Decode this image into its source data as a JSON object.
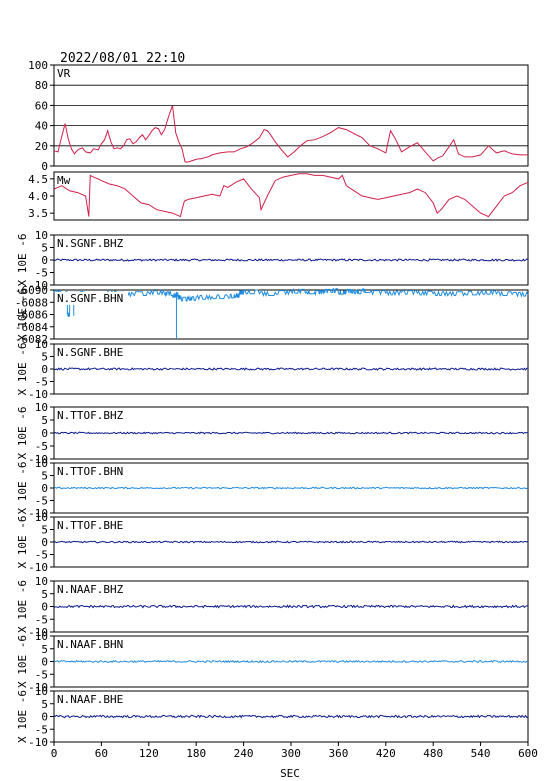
{
  "header": {
    "timestamp": "2022/08/01 22:10"
  },
  "x_axis": {
    "label": "SEC",
    "range": [
      0,
      600
    ],
    "ticks": [
      "0",
      "60",
      "120",
      "180",
      "240",
      "300",
      "360",
      "420",
      "480",
      "540",
      "600"
    ]
  },
  "colors": {
    "vr": "#d0204a",
    "mw": "#d0204a",
    "dark_trace": "#0a1a8c",
    "light_trace": "#1e8ce0",
    "axis": "#000000"
  },
  "chart_data": [
    {
      "type": "line",
      "panel_label": "VR",
      "ylim": [
        0,
        100
      ],
      "y_ticks": [
        "0",
        "20",
        "40",
        "60",
        "80",
        "100"
      ],
      "grid": true,
      "x": [
        0,
        5,
        10,
        14,
        18,
        22,
        26,
        30,
        36,
        40,
        46,
        50,
        56,
        60,
        64,
        68,
        72,
        76,
        80,
        84,
        88,
        92,
        96,
        100,
        104,
        108,
        112,
        116,
        120,
        124,
        128,
        132,
        136,
        140,
        145,
        150,
        154,
        158,
        162,
        166,
        170,
        174,
        178,
        182,
        186,
        190,
        195,
        200,
        205,
        210,
        220,
        228,
        236,
        244,
        252,
        260,
        266,
        270,
        274,
        280,
        288,
        296,
        304,
        312,
        320,
        330,
        340,
        350,
        360,
        370,
        380,
        390,
        400,
        410,
        420,
        426,
        432,
        440,
        450,
        460,
        470,
        480,
        486,
        492,
        500,
        506,
        512,
        520,
        530,
        540,
        550,
        560,
        570,
        580,
        590,
        600
      ],
      "values": [
        15,
        14,
        30,
        42,
        27,
        17,
        12,
        16,
        18,
        14,
        13,
        17,
        16,
        22,
        26,
        35,
        24,
        17,
        18,
        17,
        20,
        26,
        27,
        22,
        24,
        28,
        31,
        26,
        30,
        35,
        38,
        37,
        31,
        36,
        49,
        60,
        33,
        24,
        17,
        4,
        4,
        5,
        6,
        7,
        7,
        8,
        9,
        11,
        12,
        13,
        14,
        14,
        17,
        19,
        23,
        28,
        36,
        35,
        31,
        24,
        16,
        9,
        14,
        20,
        25,
        26,
        29,
        33,
        38,
        36,
        32,
        28,
        20,
        17,
        13,
        35,
        27,
        14,
        19,
        23,
        14,
        5,
        8,
        10,
        19,
        26,
        12,
        9,
        9,
        11,
        20,
        13,
        15,
        12,
        11,
        11
      ]
    },
    {
      "type": "line",
      "panel_label": "Mw",
      "ylim": [
        3.3,
        4.7
      ],
      "y_ticks": [
        "3.5",
        "4.0",
        "4.5"
      ],
      "grid": false,
      "x": [
        0,
        10,
        20,
        30,
        40,
        44,
        46,
        50,
        56,
        60,
        70,
        80,
        90,
        100,
        110,
        120,
        130,
        140,
        150,
        160,
        162,
        165,
        170,
        180,
        190,
        200,
        210,
        215,
        220,
        230,
        240,
        250,
        260,
        262,
        270,
        280,
        290,
        300,
        310,
        320,
        330,
        340,
        350,
        360,
        365,
        370,
        380,
        390,
        400,
        410,
        420,
        430,
        440,
        450,
        460,
        470,
        480,
        485,
        490,
        500,
        510,
        520,
        530,
        540,
        550,
        560,
        570,
        580,
        590,
        600
      ],
      "values": [
        4.2,
        4.3,
        4.15,
        4.1,
        4.0,
        3.4,
        4.6,
        4.55,
        4.5,
        4.45,
        4.35,
        4.3,
        4.2,
        4.0,
        3.8,
        3.75,
        3.6,
        3.55,
        3.5,
        3.4,
        3.6,
        3.85,
        3.9,
        3.95,
        4.0,
        4.05,
        4.0,
        4.3,
        4.25,
        4.4,
        4.5,
        4.2,
        3.95,
        3.6,
        4.0,
        4.45,
        4.55,
        4.6,
        4.65,
        4.65,
        4.6,
        4.6,
        4.55,
        4.5,
        4.6,
        4.3,
        4.15,
        4.0,
        3.95,
        3.9,
        3.95,
        4.0,
        4.05,
        4.1,
        4.2,
        4.1,
        3.8,
        3.5,
        3.6,
        3.9,
        4.0,
        3.9,
        3.7,
        3.5,
        3.4,
        3.7,
        4.0,
        4.1,
        4.3,
        4.4
      ]
    },
    {
      "type": "line",
      "panel_label": "N.SGNF.BHZ",
      "ylabel": "X 10E -6",
      "ylim": [
        -10,
        10
      ],
      "y_ticks": [
        "-10",
        "-5",
        "0",
        "5",
        "10"
      ],
      "baseline": 0,
      "amplitude": 0.4,
      "color_role": "dark"
    },
    {
      "type": "line",
      "panel_label": "N.SGNF.BHN",
      "ylabel": "X 10E -6",
      "ylim": [
        -6082,
        -6090
      ],
      "y_ticks": [
        "-6082",
        "-6084",
        "-6086",
        "-6088",
        "-6090"
      ],
      "color_role": "light",
      "x": [
        0,
        10,
        15,
        17,
        20,
        30,
        40,
        60,
        80,
        100,
        120,
        140,
        150,
        155,
        157,
        160,
        170,
        180,
        200,
        220,
        230,
        235,
        240,
        260,
        280,
        300,
        320,
        330,
        340,
        350,
        360,
        370,
        380,
        390,
        400,
        420,
        440,
        460,
        480,
        500,
        520,
        540,
        560,
        580,
        600
      ],
      "values": [
        -6089.6,
        -6089.2,
        -6089.4,
        -6086,
        -6089.3,
        -6089.4,
        -6089.2,
        -6089.5,
        -6089.3,
        -6089.4,
        -6089.6,
        -6089.4,
        -6089.1,
        -6089.3,
        -6088.8,
        -6088.5,
        -6088.6,
        -6088.8,
        -6088.9,
        -6089.0,
        -6089.1,
        -6089.6,
        -6089.7,
        -6089.4,
        -6089.6,
        -6089.8,
        -6089.7,
        -6089.6,
        -6089.8,
        -6089.9,
        -6089.6,
        -6089.8,
        -6089.7,
        -6089.9,
        -6089.6,
        -6089.5,
        -6089.6,
        -6089.5,
        -6089.4,
        -6089.4,
        -6089.5,
        -6089.6,
        -6089.4,
        -6089.3,
        -6089.2
      ],
      "spikes": [
        {
          "x": 155,
          "value": -6082
        },
        {
          "x": 25,
          "value": -6085.8
        }
      ]
    },
    {
      "type": "line",
      "panel_label": "N.SGNF.BHE",
      "ylabel": "X 10E -6",
      "ylim": [
        -10,
        10
      ],
      "y_ticks": [
        "-10",
        "-5",
        "0",
        "5",
        "10"
      ],
      "baseline": 0,
      "amplitude": 0.4,
      "color_role": "dark"
    },
    {
      "type": "line",
      "panel_label": "N.TTOF.BHZ",
      "ylabel": "X 10E -6",
      "ylim": [
        -10,
        10
      ],
      "y_ticks": [
        "-10",
        "-5",
        "0",
        "5",
        "10"
      ],
      "baseline": 0,
      "amplitude": 0.3,
      "color_role": "dark"
    },
    {
      "type": "line",
      "panel_label": "N.TTOF.BHN",
      "ylabel": "X 10E -6",
      "ylim": [
        -10,
        10
      ],
      "y_ticks": [
        "-10",
        "-5",
        "0",
        "5",
        "10"
      ],
      "baseline": 0,
      "amplitude": 0.3,
      "color_role": "light"
    },
    {
      "type": "line",
      "panel_label": "N.TTOF.BHE",
      "ylabel": "X 10E -6",
      "ylim": [
        -10,
        10
      ],
      "y_ticks": [
        "-10",
        "-5",
        "0",
        "5",
        "10"
      ],
      "baseline": 0,
      "amplitude": 0.3,
      "color_role": "dark"
    },
    {
      "type": "line",
      "panel_label": "N.NAAF.BHZ",
      "ylabel": "X 10E -6",
      "ylim": [
        -10,
        10
      ],
      "y_ticks": [
        "-10",
        "-5",
        "0",
        "5",
        "10"
      ],
      "baseline": 0,
      "amplitude": 0.45,
      "color_role": "dark"
    },
    {
      "type": "line",
      "panel_label": "N.NAAF.BHN",
      "ylabel": "X 10E -6",
      "ylim": [
        -10,
        10
      ],
      "y_ticks": [
        "-10",
        "-5",
        "0",
        "5",
        "10"
      ],
      "baseline": 0,
      "amplitude": 0.35,
      "color_role": "light"
    },
    {
      "type": "line",
      "panel_label": "N.NAAF.BHE",
      "ylabel": "X 10E -6",
      "ylim": [
        -10,
        10
      ],
      "y_ticks": [
        "-10",
        "-5",
        "0",
        "5",
        "10"
      ],
      "baseline": 0,
      "amplitude": 0.45,
      "color_role": "dark"
    }
  ]
}
